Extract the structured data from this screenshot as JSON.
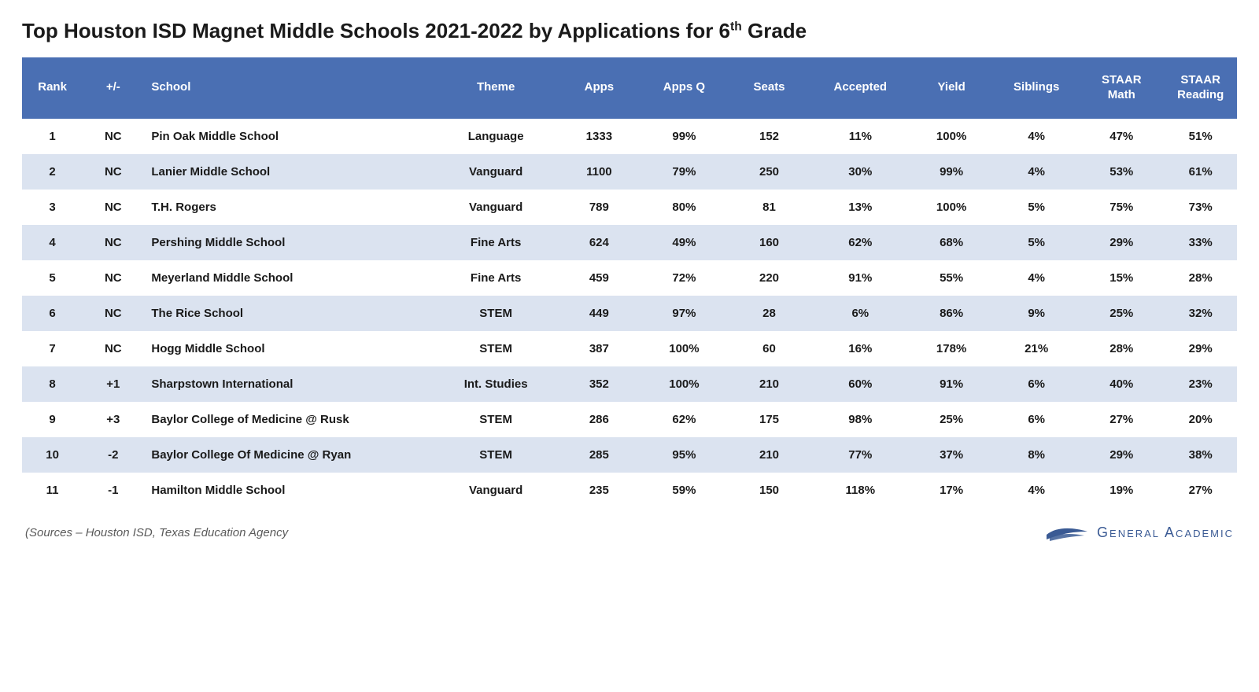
{
  "title_pre": "Top Houston ISD Magnet Middle Schools 2021-2022 by Applications for 6",
  "title_sup": "th",
  "title_post": " Grade",
  "table": {
    "header_bg": "#4a6fb3",
    "row_even_bg": "#dbe3f0",
    "row_odd_bg": "#ffffff",
    "columns": [
      {
        "key": "rank",
        "label": "Rank",
        "align": "center",
        "width": "5%"
      },
      {
        "key": "pm",
        "label": "+/-",
        "align": "center",
        "width": "5%"
      },
      {
        "key": "school",
        "label": "School",
        "align": "left",
        "width": "24%"
      },
      {
        "key": "theme",
        "label": "Theme",
        "align": "center",
        "width": "10%"
      },
      {
        "key": "apps",
        "label": "Apps",
        "align": "center",
        "width": "7%"
      },
      {
        "key": "appsq",
        "label": "Apps Q",
        "align": "center",
        "width": "7%"
      },
      {
        "key": "seats",
        "label": "Seats",
        "align": "center",
        "width": "7%"
      },
      {
        "key": "accepted",
        "label": "Accepted",
        "align": "center",
        "width": "8%"
      },
      {
        "key": "yield",
        "label": "Yield",
        "align": "center",
        "width": "7%"
      },
      {
        "key": "siblings",
        "label": "Siblings",
        "align": "center",
        "width": "7%"
      },
      {
        "key": "math",
        "label": "STAAR Math",
        "align": "center",
        "width": "7%"
      },
      {
        "key": "reading",
        "label": "STAAR Reading",
        "align": "center",
        "width": "7%"
      }
    ],
    "rows": [
      {
        "rank": "1",
        "pm": "NC",
        "school": "Pin Oak Middle School",
        "theme": "Language",
        "apps": "1333",
        "appsq": "99%",
        "seats": "152",
        "accepted": "11%",
        "yield": "100%",
        "siblings": "4%",
        "math": "47%",
        "reading": "51%"
      },
      {
        "rank": "2",
        "pm": "NC",
        "school": "Lanier Middle School",
        "theme": "Vanguard",
        "apps": "1100",
        "appsq": "79%",
        "seats": "250",
        "accepted": "30%",
        "yield": "99%",
        "siblings": "4%",
        "math": "53%",
        "reading": "61%"
      },
      {
        "rank": "3",
        "pm": "NC",
        "school": "T.H. Rogers",
        "theme": "Vanguard",
        "apps": "789",
        "appsq": "80%",
        "seats": "81",
        "accepted": "13%",
        "yield": "100%",
        "siblings": "5%",
        "math": "75%",
        "reading": "73%"
      },
      {
        "rank": "4",
        "pm": "NC",
        "school": "Pershing Middle School",
        "theme": "Fine Arts",
        "apps": "624",
        "appsq": "49%",
        "seats": "160",
        "accepted": "62%",
        "yield": "68%",
        "siblings": "5%",
        "math": "29%",
        "reading": "33%"
      },
      {
        "rank": "5",
        "pm": "NC",
        "school": "Meyerland Middle School",
        "theme": "Fine Arts",
        "apps": "459",
        "appsq": "72%",
        "seats": "220",
        "accepted": "91%",
        "yield": "55%",
        "siblings": "4%",
        "math": "15%",
        "reading": "28%"
      },
      {
        "rank": "6",
        "pm": "NC",
        "school": "The Rice School",
        "theme": "STEM",
        "apps": "449",
        "appsq": "97%",
        "seats": "28",
        "accepted": "6%",
        "yield": "86%",
        "siblings": "9%",
        "math": "25%",
        "reading": "32%"
      },
      {
        "rank": "7",
        "pm": "NC",
        "school": "Hogg Middle School",
        "theme": "STEM",
        "apps": "387",
        "appsq": "100%",
        "seats": "60",
        "accepted": "16%",
        "yield": "178%",
        "siblings": "21%",
        "math": "28%",
        "reading": "29%"
      },
      {
        "rank": "8",
        "pm": "+1",
        "school": "Sharpstown International",
        "theme": "Int. Studies",
        "apps": "352",
        "appsq": "100%",
        "seats": "210",
        "accepted": "60%",
        "yield": "91%",
        "siblings": "6%",
        "math": "40%",
        "reading": "23%"
      },
      {
        "rank": "9",
        "pm": "+3",
        "school": "Baylor College of Medicine @ Rusk",
        "theme": "STEM",
        "apps": "286",
        "appsq": "62%",
        "seats": "175",
        "accepted": "98%",
        "yield": "25%",
        "siblings": "6%",
        "math": "27%",
        "reading": "20%"
      },
      {
        "rank": "10",
        "pm": "-2",
        "school": "Baylor College Of Medicine @ Ryan",
        "theme": "STEM",
        "apps": "285",
        "appsq": "95%",
        "seats": "210",
        "accepted": "77%",
        "yield": "37%",
        "siblings": "8%",
        "math": "29%",
        "reading": "38%"
      },
      {
        "rank": "11",
        "pm": "-1",
        "school": "Hamilton Middle School",
        "theme": "Vanguard",
        "apps": "235",
        "appsq": "59%",
        "seats": "150",
        "accepted": "118%",
        "yield": "17%",
        "siblings": "4%",
        "math": "19%",
        "reading": "27%"
      }
    ]
  },
  "sources_text": "(Sources – Houston ISD, Texas Education Agency",
  "logo_text": "General Academic",
  "colors": {
    "brand": "#3a5a94",
    "text": "#1a1a1a",
    "muted": "#5a5a5a"
  }
}
